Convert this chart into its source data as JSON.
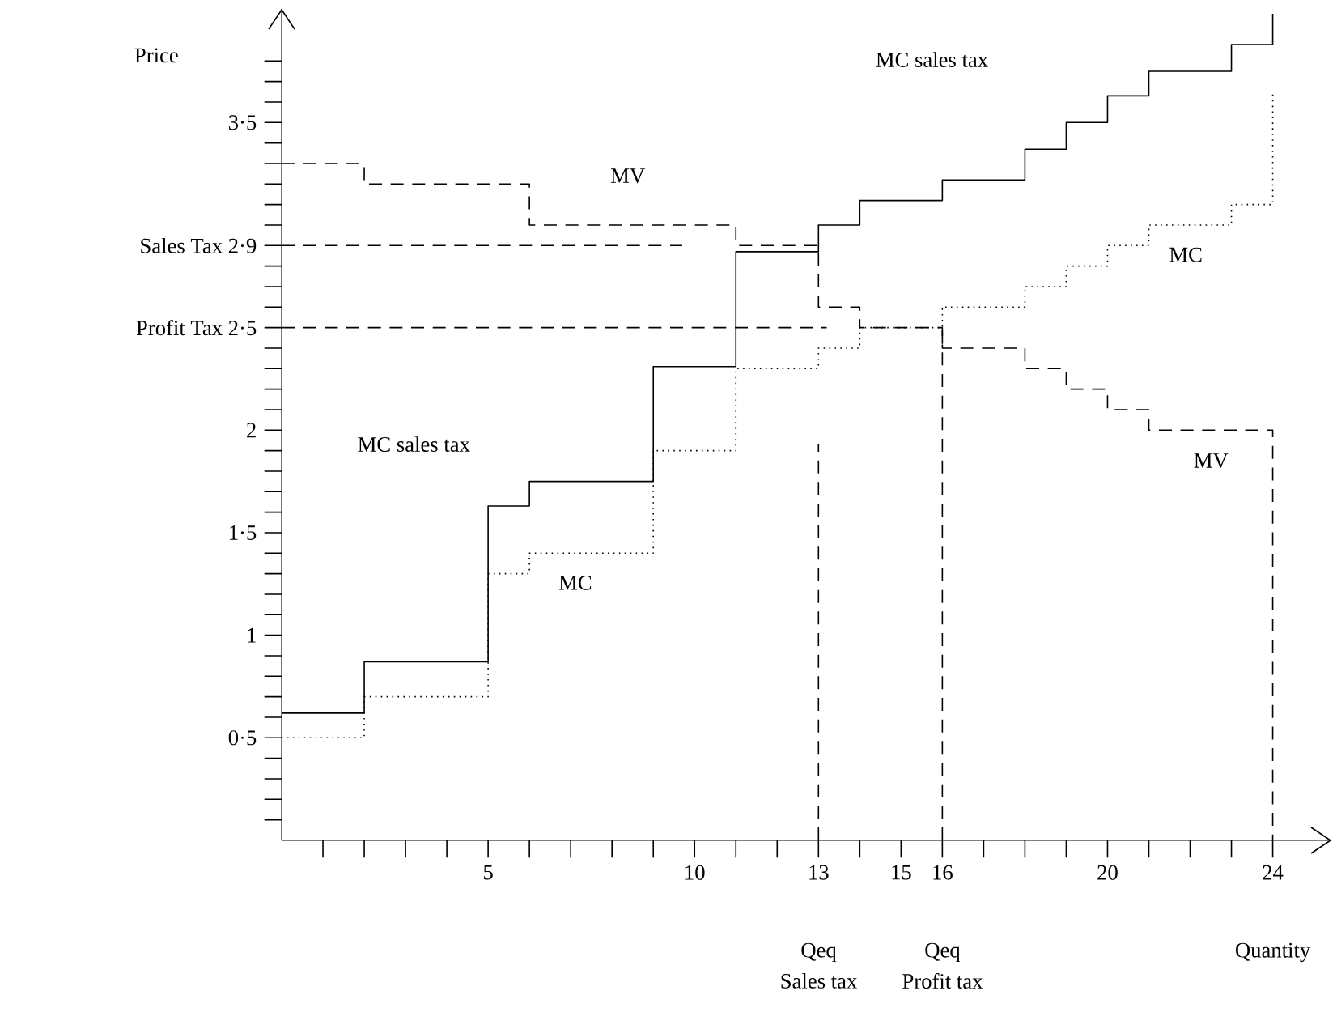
{
  "chart_data": {
    "type": "step",
    "xlabel": "Quantity",
    "ylabel": "Price",
    "xlim": [
      0,
      25.4
    ],
    "ylim": [
      0,
      4.05
    ],
    "xticks": [
      {
        "value": 1,
        "label": null
      },
      {
        "value": 2,
        "label": null
      },
      {
        "value": 3,
        "label": null
      },
      {
        "value": 4,
        "label": null
      },
      5,
      {
        "value": 6,
        "label": null
      },
      {
        "value": 7,
        "label": null
      },
      {
        "value": 8,
        "label": null
      },
      {
        "value": 9,
        "label": null
      },
      10,
      {
        "value": 11,
        "label": null
      },
      {
        "value": 12,
        "label": null
      },
      13,
      {
        "value": 14,
        "label": null
      },
      15,
      16,
      {
        "value": 17,
        "label": null
      },
      {
        "value": 18,
        "label": null
      },
      {
        "value": 19,
        "label": null
      },
      20,
      {
        "value": 21,
        "label": null
      },
      {
        "value": 22,
        "label": null
      },
      {
        "value": 23,
        "label": null
      },
      24
    ],
    "yticks": [
      {
        "value": 0.1,
        "label": null
      },
      {
        "value": 0.2,
        "label": null
      },
      {
        "value": 0.3,
        "label": null
      },
      {
        "value": 0.4,
        "label": null
      },
      {
        "value": 0.5,
        "label": "0·5"
      },
      {
        "value": 0.6,
        "label": null
      },
      {
        "value": 0.7,
        "label": null
      },
      {
        "value": 0.8,
        "label": null
      },
      {
        "value": 0.9,
        "label": null
      },
      1,
      {
        "value": 1.1,
        "label": null
      },
      {
        "value": 1.2,
        "label": null
      },
      {
        "value": 1.3,
        "label": null
      },
      {
        "value": 1.4,
        "label": null
      },
      {
        "value": 1.5,
        "label": "1·5"
      },
      {
        "value": 1.6,
        "label": null
      },
      {
        "value": 1.7,
        "label": null
      },
      {
        "value": 1.8,
        "label": null
      },
      {
        "value": 1.9,
        "label": null
      },
      2,
      {
        "value": 2.1,
        "label": null
      },
      {
        "value": 2.2,
        "label": null
      },
      {
        "value": 2.3,
        "label": null
      },
      {
        "value": 2.4,
        "label": null
      },
      {
        "value": 2.5,
        "label": "Profit Tax  2·5"
      },
      {
        "value": 2.6,
        "label": null
      },
      {
        "value": 2.7,
        "label": null
      },
      {
        "value": 2.8,
        "label": null
      },
      {
        "value": 2.9,
        "label": "Sales Tax  2·9"
      },
      {
        "value": 3.0,
        "label": null
      },
      {
        "value": 3.1,
        "label": null
      },
      {
        "value": 3.2,
        "label": null
      },
      {
        "value": 3.3,
        "label": null
      },
      {
        "value": 3.4,
        "label": null
      },
      {
        "value": 3.5,
        "label": "3·5"
      },
      {
        "value": 3.6,
        "label": null
      },
      {
        "value": 3.7,
        "label": null
      },
      {
        "value": 3.8,
        "label": null
      }
    ],
    "series": [
      {
        "color": "#000000",
        "line_style": "dotted",
        "x": [
          0,
          2,
          5,
          6,
          9,
          11,
          13,
          14,
          16,
          18,
          19,
          20,
          21,
          23,
          24
        ],
        "values": [
          0.5,
          0.7,
          1.3,
          1.4,
          1.9,
          2.3,
          2.4,
          2.5,
          2.6,
          2.7,
          2.8,
          2.9,
          3.0,
          3.1,
          3.65
        ]
      },
      {
        "color": "#000000",
        "line_style": "solid",
        "x": [
          0,
          2,
          5,
          6,
          9,
          11,
          13,
          14,
          16,
          18,
          19,
          20,
          21,
          23,
          24
        ],
        "values": [
          0.62,
          0.87,
          1.63,
          1.75,
          2.31,
          2.87,
          3.0,
          3.12,
          3.22,
          3.37,
          3.5,
          3.63,
          3.75,
          3.88,
          4.03
        ]
      },
      {
        "color": "#000000",
        "line_style": "dashed",
        "x": [
          0,
          2,
          6,
          11,
          13,
          14,
          16,
          18,
          19,
          20,
          21,
          24
        ],
        "values": [
          3.3,
          3.2,
          3.0,
          2.9,
          2.6,
          2.5,
          2.4,
          2.3,
          2.2,
          2.1,
          2.0,
          0
        ]
      },
      {
        "type": "line",
        "color": "#000000",
        "line_style": "dashed",
        "x": [
          0,
          9.7
        ],
        "values": [
          2.9,
          2.9
        ]
      },
      {
        "type": "line",
        "color": "#000000",
        "line_style": "dashed",
        "x": [
          0,
          13.2
        ],
        "values": [
          2.5,
          2.5
        ]
      },
      {
        "type": "line",
        "color": "#000000",
        "line_style": "dashed",
        "x": [
          13,
          13
        ],
        "values": [
          0,
          1.93
        ]
      },
      {
        "type": "line",
        "color": "#000000",
        "line_style": "dashed",
        "x": [
          16,
          16
        ],
        "values": [
          0,
          2.5
        ]
      }
    ],
    "annotations": [
      "MV",
      "MC sales tax",
      "MC sales tax",
      "MC",
      "MC",
      "MV",
      "Qeq",
      "Sales tax",
      "Qeq",
      "Profit tax"
    ],
    "grid": false
  }
}
